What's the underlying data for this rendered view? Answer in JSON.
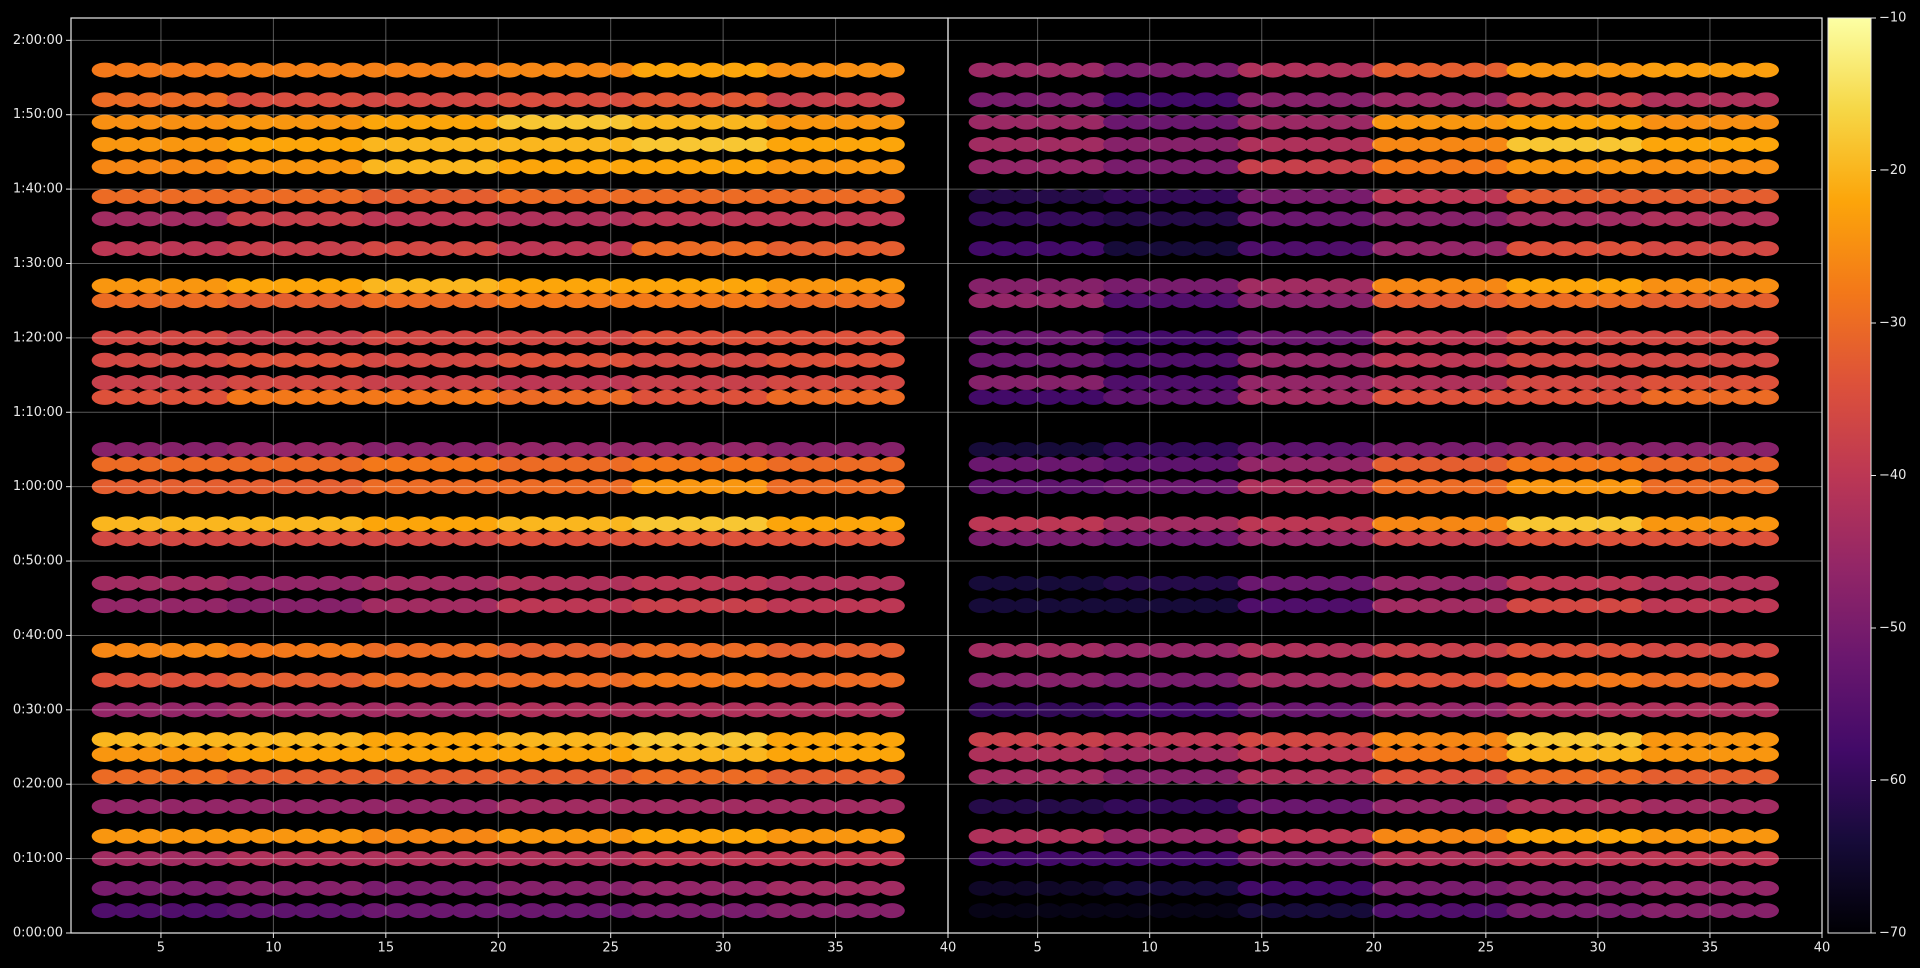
{
  "chart_data": {
    "type": "heatmap",
    "colormap": "inferno",
    "grid": true,
    "clim": [
      -70,
      -10
    ],
    "cticks": [
      {
        "value": -70,
        "label": "−70"
      },
      {
        "value": -60,
        "label": "−60"
      },
      {
        "value": -50,
        "label": "−50"
      },
      {
        "value": -40,
        "label": "−40"
      },
      {
        "value": -30,
        "label": "−30"
      },
      {
        "value": -20,
        "label": "−20"
      },
      {
        "value": -10,
        "label": "−10"
      }
    ],
    "ylim": [
      0,
      7380
    ],
    "yticks": [
      {
        "value": 0,
        "label": "0:00:00"
      },
      {
        "value": 600,
        "label": "0:10:00"
      },
      {
        "value": 1200,
        "label": "0:20:00"
      },
      {
        "value": 1800,
        "label": "0:30:00"
      },
      {
        "value": 2400,
        "label": "0:40:00"
      },
      {
        "value": 3000,
        "label": "0:50:00"
      },
      {
        "value": 3600,
        "label": "1:00:00"
      },
      {
        "value": 4200,
        "label": "1:10:00"
      },
      {
        "value": 4800,
        "label": "1:20:00"
      },
      {
        "value": 5400,
        "label": "1:30:00"
      },
      {
        "value": 6000,
        "label": "1:40:00"
      },
      {
        "value": 6600,
        "label": "1:50:00"
      },
      {
        "value": 7200,
        "label": "2:00:00"
      }
    ],
    "y": [
      6960,
      6720,
      6540,
      6360,
      6180,
      5940,
      5760,
      5520,
      5220,
      5100,
      4800,
      4620,
      4440,
      4320,
      3900,
      3780,
      3600,
      3300,
      3180,
      2820,
      2640,
      2280,
      2040,
      1800,
      1560,
      1440,
      1260,
      1020,
      780,
      600,
      360,
      180
    ],
    "panels": [
      {
        "xlim": [
          1,
          40
        ],
        "xticks": [
          5,
          10,
          15,
          20,
          25,
          30,
          35,
          40
        ],
        "x": [
          5,
          11,
          17,
          23,
          29,
          35
        ],
        "z": [
          [
            -28,
            -27,
            -27,
            -26,
            -22,
            -25
          ],
          [
            -30,
            -35,
            -36,
            -35,
            -33,
            -38
          ],
          [
            -25,
            -24,
            -22,
            -18,
            -20,
            -24
          ],
          [
            -24,
            -22,
            -20,
            -20,
            -18,
            -22
          ],
          [
            -26,
            -24,
            -20,
            -22,
            -22,
            -24
          ],
          [
            -30,
            -30,
            -32,
            -30,
            -30,
            -30
          ],
          [
            -44,
            -38,
            -40,
            -42,
            -40,
            -40
          ],
          [
            -40,
            -38,
            -36,
            -40,
            -30,
            -32
          ],
          [
            -24,
            -22,
            -20,
            -22,
            -22,
            -24
          ],
          [
            -30,
            -32,
            -30,
            -28,
            -28,
            -30
          ],
          [
            -36,
            -38,
            -36,
            -36,
            -34,
            -34
          ],
          [
            -36,
            -34,
            -36,
            -34,
            -36,
            -34
          ],
          [
            -38,
            -36,
            -38,
            -40,
            -38,
            -36
          ],
          [
            -34,
            -28,
            -28,
            -30,
            -34,
            -30
          ],
          [
            -48,
            -46,
            -48,
            -46,
            -46,
            -48
          ],
          [
            -30,
            -30,
            -28,
            -30,
            -28,
            -30
          ],
          [
            -32,
            -32,
            -30,
            -30,
            -24,
            -30
          ],
          [
            -20,
            -20,
            -22,
            -20,
            -18,
            -22
          ],
          [
            -36,
            -36,
            -36,
            -34,
            -34,
            -34
          ],
          [
            -44,
            -46,
            -44,
            -42,
            -40,
            -42
          ],
          [
            -46,
            -48,
            -44,
            -40,
            -38,
            -40
          ],
          [
            -26,
            -28,
            -30,
            -32,
            -30,
            -32
          ],
          [
            -34,
            -32,
            -30,
            -30,
            -28,
            -30
          ],
          [
            -46,
            -44,
            -44,
            -42,
            -42,
            -42
          ],
          [
            -20,
            -20,
            -22,
            -20,
            -18,
            -22
          ],
          [
            -24,
            -22,
            -22,
            -22,
            -20,
            -22
          ],
          [
            -30,
            -32,
            -32,
            -32,
            -30,
            -32
          ],
          [
            -46,
            -46,
            -46,
            -44,
            -44,
            -44
          ],
          [
            -24,
            -24,
            -26,
            -24,
            -22,
            -24
          ],
          [
            -44,
            -42,
            -42,
            -42,
            -40,
            -40
          ],
          [
            -50,
            -48,
            -50,
            -48,
            -46,
            -44
          ],
          [
            -56,
            -54,
            -52,
            -52,
            -50,
            -48
          ]
        ]
      },
      {
        "xlim": [
          1,
          40
        ],
        "xticks": [
          5,
          10,
          15,
          20,
          25,
          30,
          35,
          40
        ],
        "x": [
          5,
          11,
          17,
          23,
          29,
          35
        ],
        "z": [
          [
            -45,
            -50,
            -42,
            -32,
            -24,
            -23
          ],
          [
            -50,
            -58,
            -48,
            -45,
            -38,
            -42
          ],
          [
            -45,
            -52,
            -45,
            -24,
            -22,
            -25
          ],
          [
            -44,
            -48,
            -42,
            -26,
            -18,
            -22
          ],
          [
            -46,
            -50,
            -38,
            -28,
            -24,
            -25
          ],
          [
            -62,
            -60,
            -50,
            -40,
            -32,
            -32
          ],
          [
            -60,
            -62,
            -52,
            -48,
            -44,
            -42
          ],
          [
            -58,
            -64,
            -56,
            -46,
            -34,
            -36
          ],
          [
            -48,
            -50,
            -44,
            -26,
            -22,
            -25
          ],
          [
            -46,
            -56,
            -48,
            -32,
            -30,
            -32
          ],
          [
            -52,
            -58,
            -52,
            -40,
            -36,
            -36
          ],
          [
            -52,
            -56,
            -46,
            -40,
            -36,
            -36
          ],
          [
            -48,
            -56,
            -46,
            -42,
            -36,
            -34
          ],
          [
            -58,
            -54,
            -44,
            -34,
            -34,
            -30
          ],
          [
            -64,
            -60,
            -54,
            -50,
            -48,
            -48
          ],
          [
            -52,
            -54,
            -46,
            -32,
            -28,
            -30
          ],
          [
            -54,
            -52,
            -42,
            -30,
            -24,
            -30
          ],
          [
            -40,
            -44,
            -40,
            -26,
            -18,
            -24
          ],
          [
            -50,
            -52,
            -46,
            -38,
            -34,
            -34
          ],
          [
            -64,
            -62,
            -52,
            -46,
            -40,
            -42
          ],
          [
            -64,
            -64,
            -56,
            -44,
            -36,
            -40
          ],
          [
            -44,
            -46,
            -42,
            -38,
            -34,
            -36
          ],
          [
            -48,
            -50,
            -44,
            -34,
            -28,
            -30
          ],
          [
            -60,
            -58,
            -52,
            -46,
            -42,
            -42
          ],
          [
            -38,
            -40,
            -36,
            -26,
            -18,
            -24
          ],
          [
            -42,
            -44,
            -40,
            -28,
            -20,
            -24
          ],
          [
            -44,
            -48,
            -42,
            -34,
            -30,
            -32
          ],
          [
            -62,
            -60,
            -52,
            -46,
            -42,
            -44
          ],
          [
            -42,
            -46,
            -40,
            -26,
            -22,
            -24
          ],
          [
            -58,
            -58,
            -50,
            -42,
            -40,
            -40
          ],
          [
            -66,
            -64,
            -58,
            -50,
            -48,
            -46
          ],
          [
            -68,
            -68,
            -64,
            -56,
            -50,
            -48
          ]
        ]
      }
    ]
  }
}
